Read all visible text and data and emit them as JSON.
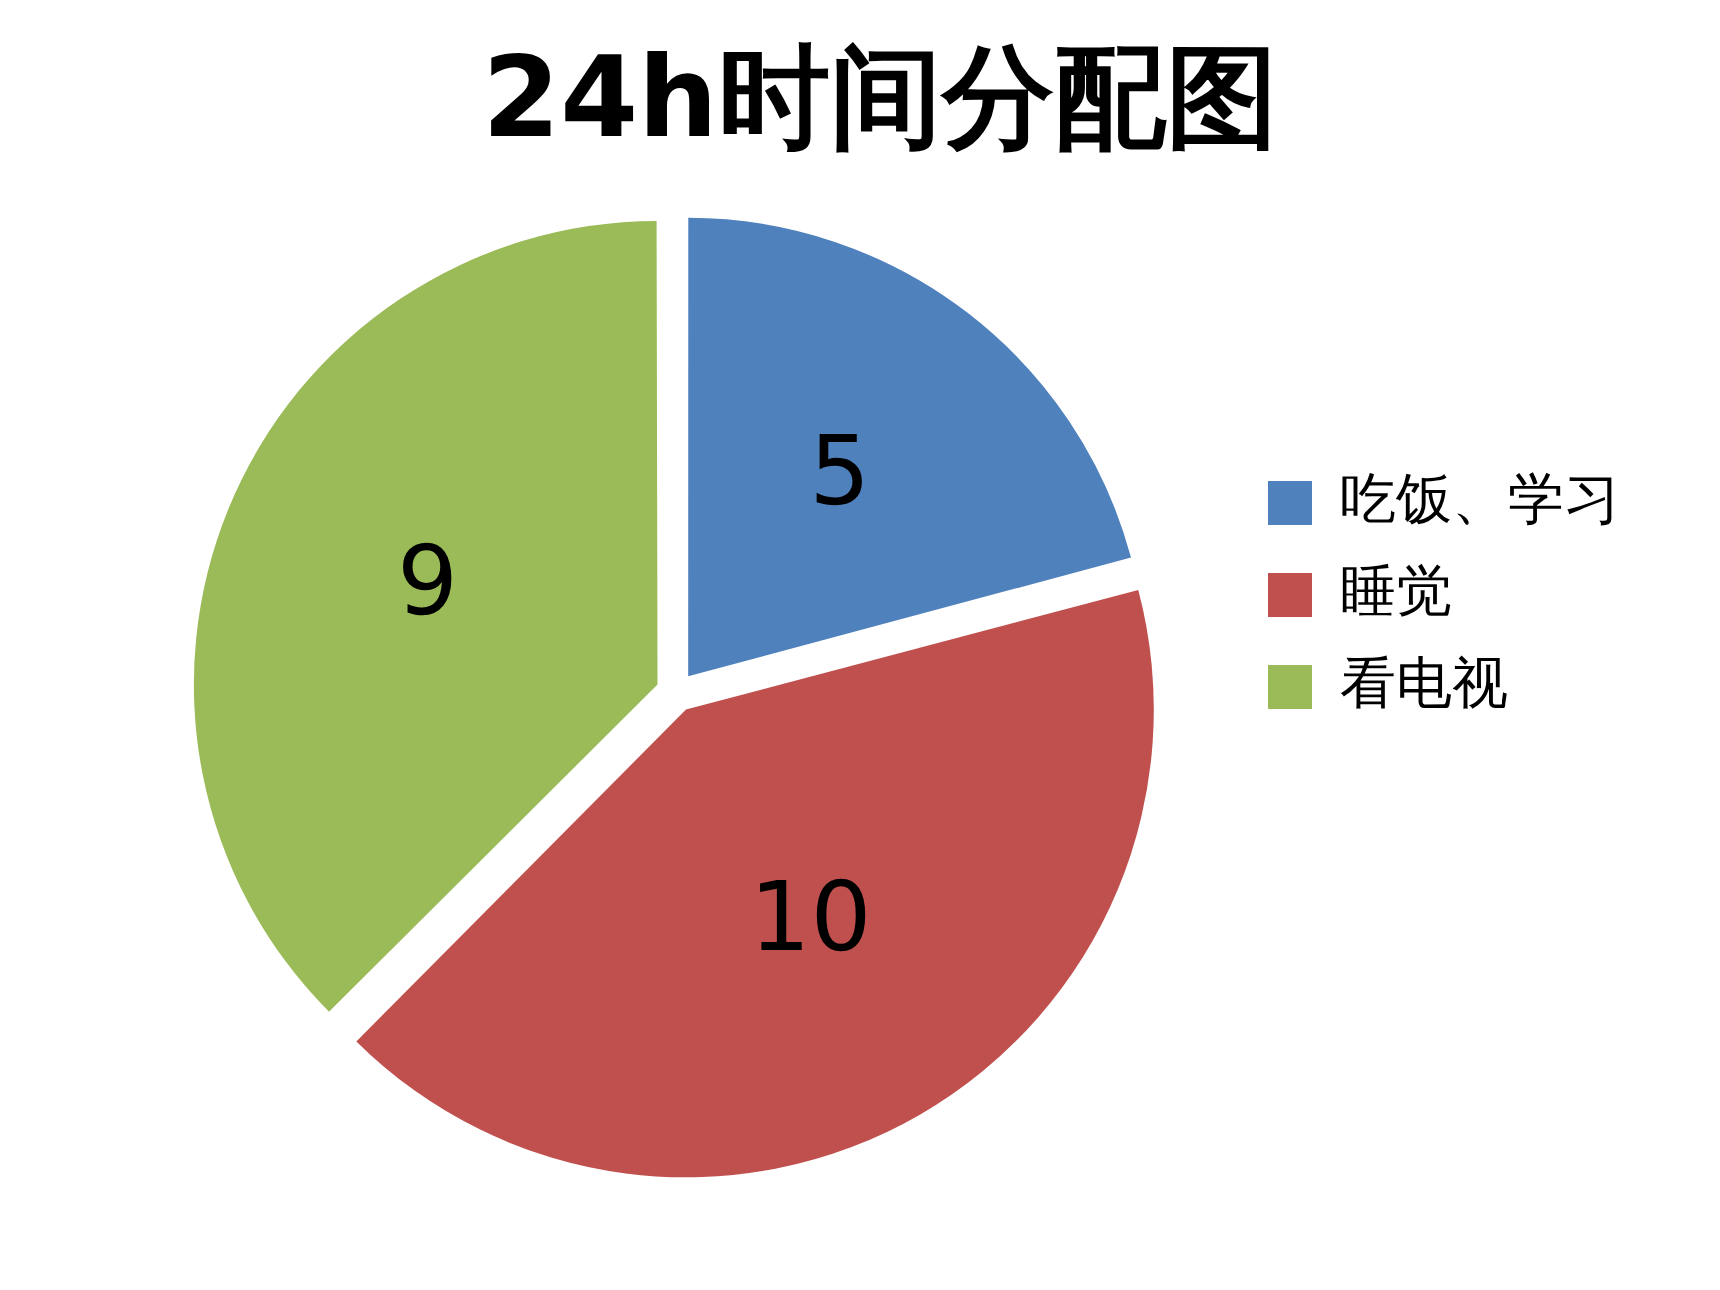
{
  "chart_data": {
    "type": "pie",
    "title": "24h时间分配图",
    "categories": [
      "吃饭、学习",
      "睡觉",
      "看电视"
    ],
    "values": [
      5,
      10,
      9
    ],
    "colors": [
      "#4f81bd",
      "#c0504d",
      "#9bbb59"
    ],
    "data_labels": true,
    "legend": "right"
  }
}
